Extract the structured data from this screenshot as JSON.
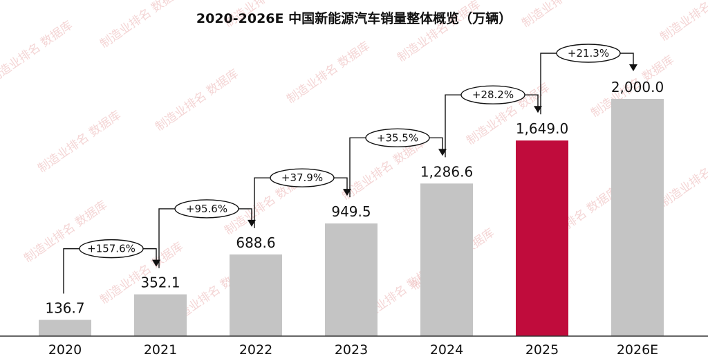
{
  "chart_data": {
    "type": "bar",
    "title": "2020-2026E 中国新能源汽车销量整体概览（万辆）",
    "categories": [
      "2020",
      "2021",
      "2022",
      "2023",
      "2024",
      "2025",
      "2026E"
    ],
    "values": [
      136.7,
      352.1,
      688.6,
      949.5,
      1286.6,
      1649.0,
      2000.0
    ],
    "value_labels": [
      "136.7",
      "352.1",
      "688.6",
      "949.5",
      "1,286.6",
      "1,649.0",
      "2,000.0"
    ],
    "growth_labels": [
      "+157.6%",
      "+95.6%",
      "+37.9%",
      "+35.5%",
      "+28.2%",
      "+21.3%"
    ],
    "ylim": [
      0,
      2250
    ],
    "grid": false,
    "legend": "none",
    "highlight_index": 5,
    "colors": {
      "bar": "#c4c4c4",
      "highlight": "#c00c3c",
      "text": "#111111",
      "axis": "#333333"
    }
  },
  "watermark": "制造业排名 数据库"
}
